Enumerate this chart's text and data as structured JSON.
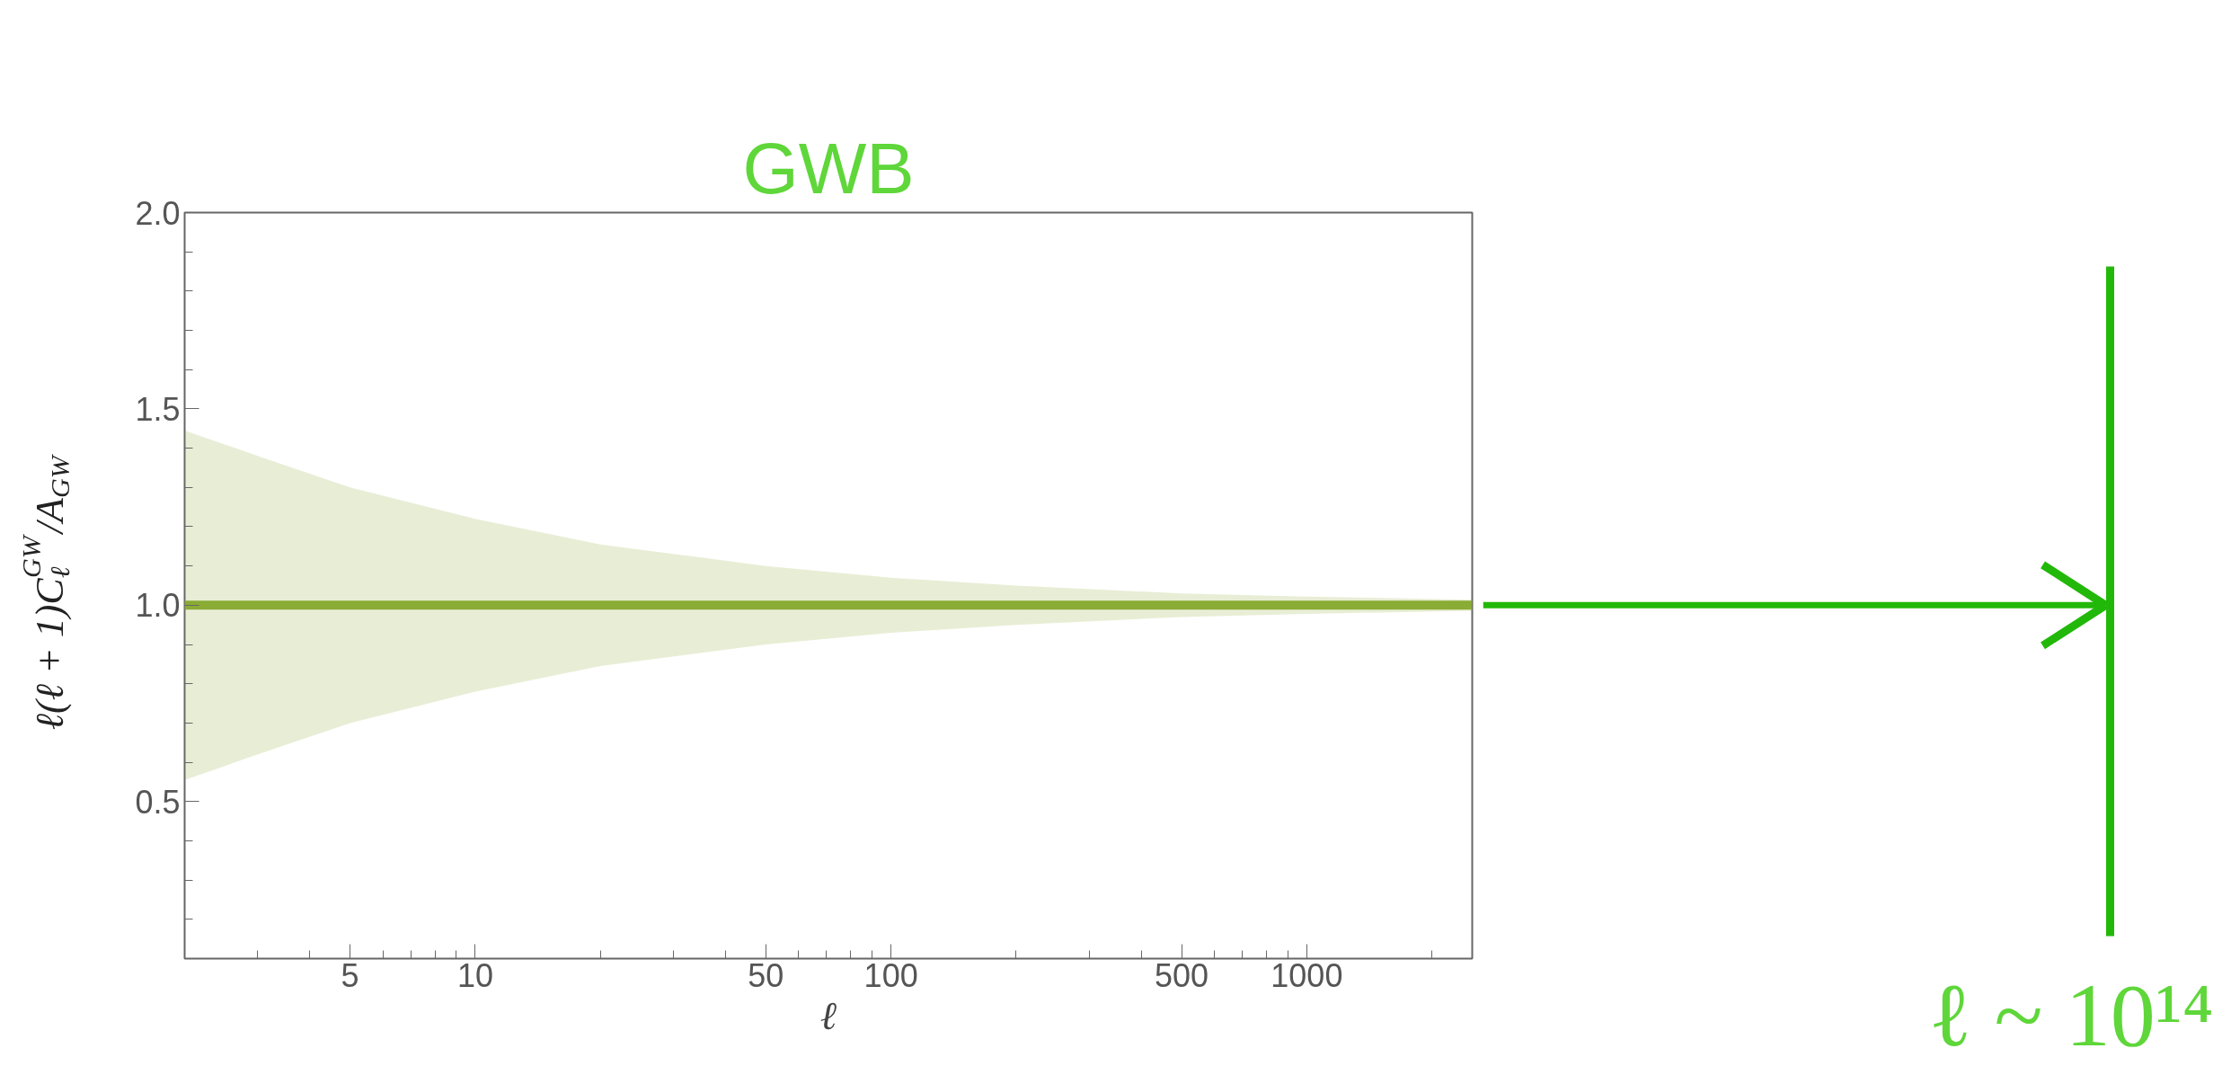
{
  "chart_data": {
    "type": "line",
    "title": "GWB",
    "xlabel": "ℓ",
    "ylabel": "ℓ(ℓ + 1)C$_{ℓ}$$^{GW}$/A$_{GW}$",
    "annotations": [
      "ℓ ~ 10¹⁴"
    ],
    "x": [
      2,
      3,
      5,
      10,
      20,
      50,
      100,
      200,
      500,
      1000,
      2500
    ],
    "series": [
      {
        "color": "#8aab34",
        "values": [
          1,
          1,
          1,
          1,
          1,
          1,
          1,
          1,
          1,
          1,
          1
        ],
        "lower": [
          0.555,
          0.62,
          0.7,
          0.78,
          0.845,
          0.9,
          0.93,
          0.95,
          0.97,
          0.978,
          0.986
        ],
        "upper": [
          1.445,
          1.38,
          1.3,
          1.22,
          1.155,
          1.1,
          1.07,
          1.05,
          1.03,
          1.022,
          1.014
        ]
      }
    ],
    "log": "x",
    "xlim": [
      2,
      2500
    ],
    "xticks": [
      {
        "value": 2,
        "label": null
      },
      {
        "value": 3,
        "label": null
      },
      {
        "value": 4,
        "label": null
      },
      5,
      {
        "value": 6,
        "label": null
      },
      {
        "value": 7,
        "label": null
      },
      {
        "value": 8,
        "label": null
      },
      {
        "value": 9,
        "label": null
      },
      10,
      {
        "value": 20,
        "label": null
      },
      {
        "value": 30,
        "label": null
      },
      {
        "value": 40,
        "label": null
      },
      50,
      {
        "value": 60,
        "label": null
      },
      {
        "value": 70,
        "label": null
      },
      {
        "value": 80,
        "label": null
      },
      {
        "value": 90,
        "label": null
      },
      100,
      {
        "value": 200,
        "label": null
      },
      {
        "value": 300,
        "label": null
      },
      {
        "value": 400,
        "label": null
      },
      500,
      {
        "value": 600,
        "label": null
      },
      {
        "value": 700,
        "label": null
      },
      {
        "value": 800,
        "label": null
      },
      {
        "value": 900,
        "label": null
      },
      1000,
      {
        "value": 2000,
        "label": null
      }
    ],
    "ylim": [
      0.1,
      2.0
    ],
    "yticks": [
      {
        "value": 0.2,
        "label": null
      },
      {
        "value": 0.3,
        "label": null
      },
      {
        "value": 0.4,
        "label": null
      },
      {
        "value": 0.5,
        "label": "0.5"
      },
      {
        "value": 0.6,
        "label": null
      },
      {
        "value": 0.7,
        "label": null
      },
      {
        "value": 0.8,
        "label": null
      },
      {
        "value": 0.9,
        "label": null
      },
      {
        "value": 1.0,
        "label": "1.0"
      },
      {
        "value": 1.1,
        "label": null
      },
      {
        "value": 1.2,
        "label": null
      },
      {
        "value": 1.3,
        "label": null
      },
      {
        "value": 1.4,
        "label": null
      },
      {
        "value": 1.5,
        "label": "1.5"
      },
      {
        "value": 1.6,
        "label": null
      },
      {
        "value": 1.7,
        "label": null
      },
      {
        "value": 1.8,
        "label": null
      },
      {
        "value": 1.9,
        "label": null
      },
      {
        "value": 2.0,
        "label": "2.0"
      }
    ],
    "grid": false
  }
}
